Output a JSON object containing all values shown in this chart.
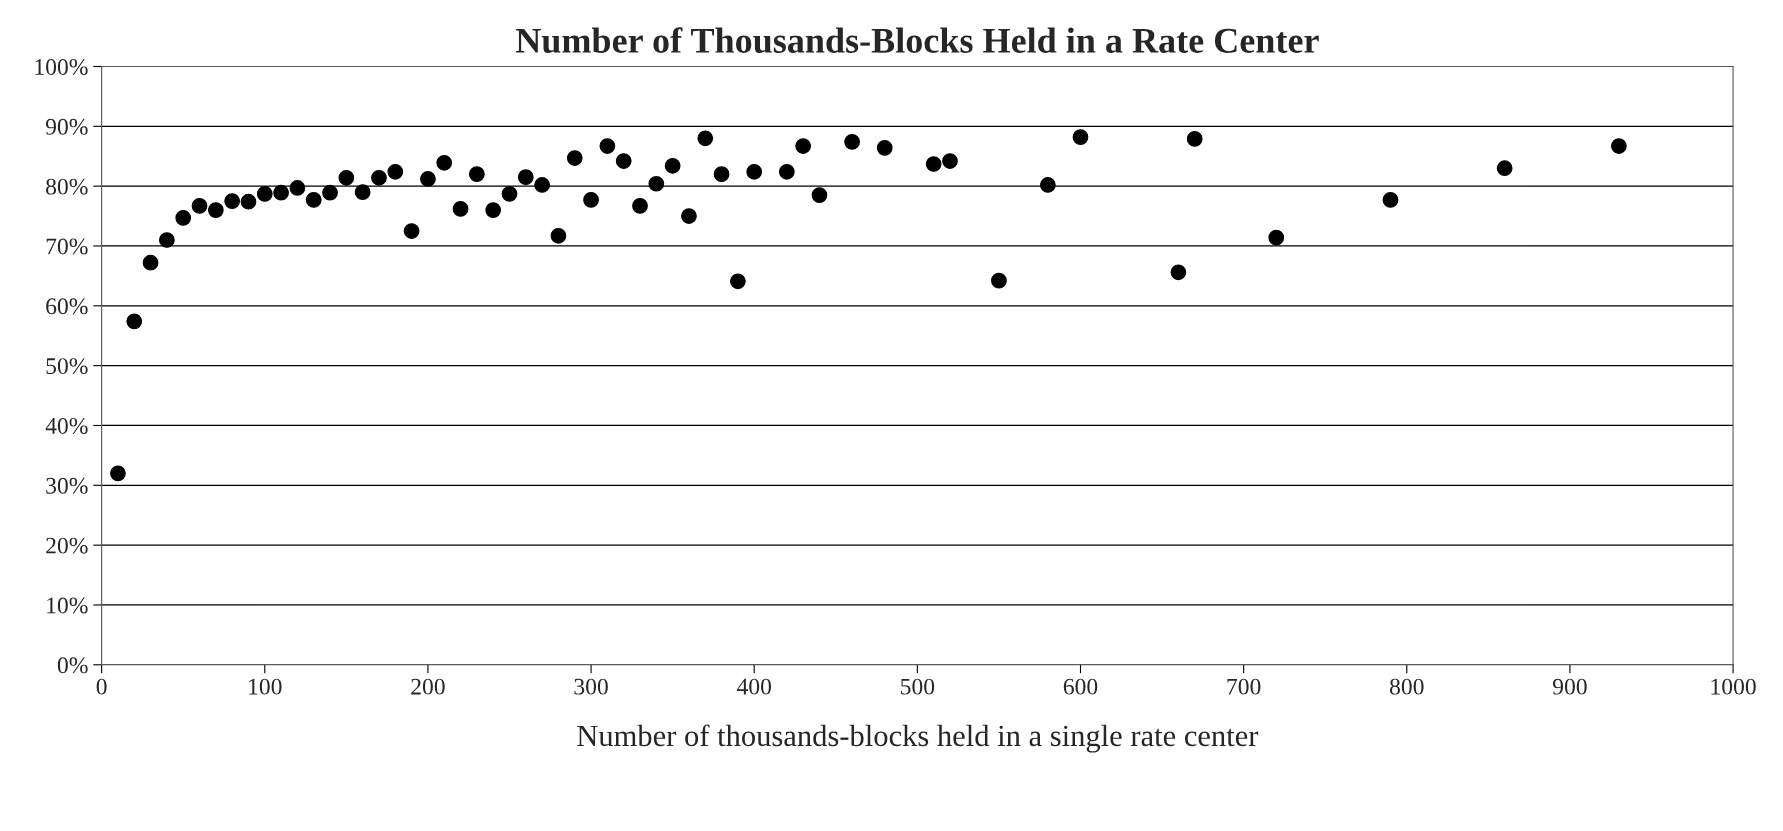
{
  "chart_data": {
    "type": "scatter",
    "title": "Number of Thousands-Blocks Held in a Rate Center",
    "xlabel": "Number of thousands-blocks held in a single rate center",
    "x": [
      10,
      20,
      30,
      40,
      50,
      60,
      70,
      80,
      90,
      100,
      110,
      120,
      130,
      140,
      150,
      160,
      170,
      180,
      190,
      200,
      210,
      220,
      230,
      240,
      250,
      260,
      270,
      280,
      290,
      300,
      310,
      320,
      330,
      340,
      350,
      360,
      370,
      380,
      390,
      400,
      420,
      430,
      440,
      460,
      480,
      510,
      520,
      550,
      580,
      600,
      660,
      670,
      720,
      790,
      860,
      930
    ],
    "series": [
      {
        "color": "#000000",
        "values": [
          32,
          57.4,
          67.2,
          71,
          74.7,
          76.7,
          76,
          77.5,
          77.4,
          78.7,
          78.9,
          79.7,
          77.7,
          78.9,
          81.4,
          79,
          81.4,
          82.4,
          72.5,
          81.2,
          83.9,
          76.2,
          82,
          76,
          78.7,
          81.5,
          80.2,
          71.7,
          84.7,
          77.7,
          86.7,
          84.2,
          76.7,
          80.4,
          83.4,
          75,
          88,
          82,
          64.1,
          82.4,
          82.4,
          86.7,
          78.5,
          87.4,
          86.4,
          83.7,
          84.2,
          64.2,
          80.2,
          88.2,
          65.6,
          87.9,
          71.4,
          77.7,
          83,
          86.7
        ]
      }
    ],
    "marker": "circle",
    "xlim": [
      0,
      1000
    ],
    "xticks": [
      0,
      100,
      200,
      300,
      400,
      500,
      600,
      700,
      800,
      900,
      1000
    ],
    "ylim": [
      0,
      100
    ],
    "yticks": [
      {
        "value": 0,
        "label": "0%"
      },
      {
        "value": 10,
        "label": "10%"
      },
      {
        "value": 20,
        "label": "20%"
      },
      {
        "value": 30,
        "label": "30%"
      },
      {
        "value": 40,
        "label": "40%"
      },
      {
        "value": 50,
        "label": "50%"
      },
      {
        "value": 60,
        "label": "60%"
      },
      {
        "value": 70,
        "label": "70%"
      },
      {
        "value": 80,
        "label": "80%"
      },
      {
        "value": 90,
        "label": "90%"
      },
      {
        "value": 100,
        "label": "100%"
      }
    ],
    "grid": "y"
  }
}
